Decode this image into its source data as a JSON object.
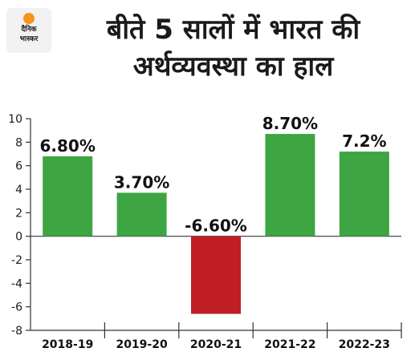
{
  "logo": {
    "line1": "दैनिक",
    "line2": "भास्कर"
  },
  "title_line1": "बीते 5 सालों में भारत की",
  "title_line2": "अर्थव्यवस्था का हाल",
  "colors": {
    "positive": "#3da542",
    "negative": "#bf1e24",
    "axis": "#333333"
  },
  "chart_data": {
    "type": "bar",
    "title": "बीते 5 सालों में भारत की अर्थव्यवस्था का हाल",
    "categories": [
      "2018-19",
      "2019-20",
      "2020-21",
      "2021-22",
      "2022-23"
    ],
    "values": [
      6.8,
      3.7,
      -6.6,
      8.7,
      7.2
    ],
    "data_labels": [
      "6.80%",
      "3.70%",
      "-6.60%",
      "8.70%",
      "7.2%"
    ],
    "ylim": [
      -8,
      10
    ],
    "yticks": [
      10,
      8,
      6,
      4,
      2,
      0,
      -2,
      -4,
      -6,
      -8
    ],
    "xlabel": "",
    "ylabel": "",
    "grid": false,
    "legend": "none"
  }
}
